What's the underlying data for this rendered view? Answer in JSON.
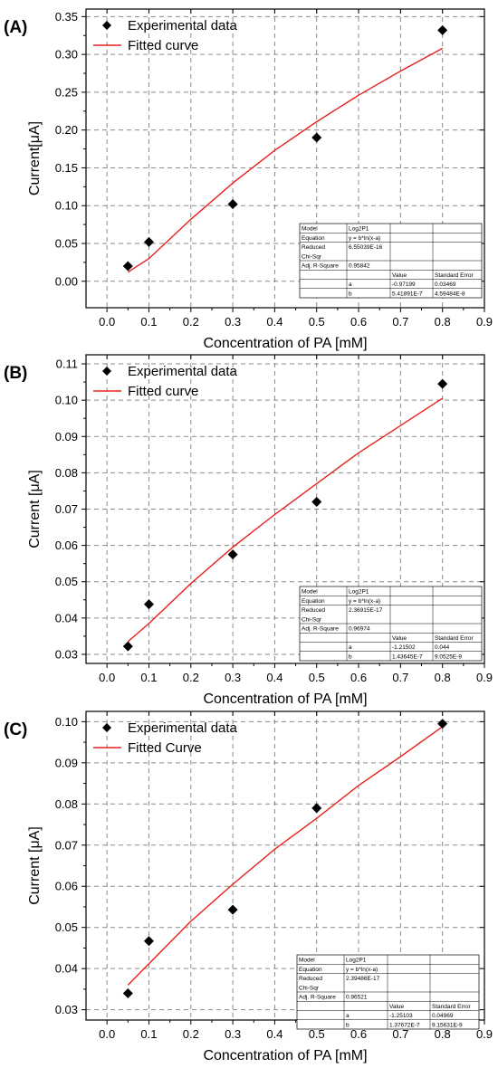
{
  "chart_data": [
    {
      "type": "scatter",
      "panel_label": "(A)",
      "xlabel": "Concentration of PA [mM]",
      "ylabel": "Current[μA]",
      "xlim": [
        -0.05,
        0.9
      ],
      "ylim": [
        -0.035,
        0.36
      ],
      "xticks": [
        0.0,
        0.1,
        0.2,
        0.3,
        0.4,
        0.5,
        0.6,
        0.7,
        0.8,
        0.9
      ],
      "xtick_labels": [
        "0.0",
        "0.1",
        "0.2",
        "0.3",
        "0.4",
        "0.5",
        "0.6",
        "0.7",
        "0.8",
        "0.9"
      ],
      "yticks": [
        0.0,
        0.05,
        0.1,
        0.15,
        0.2,
        0.25,
        0.3,
        0.35
      ],
      "ytick_labels": [
        "0.00",
        "0.05",
        "0.10",
        "0.15",
        "0.20",
        "0.25",
        "0.30",
        "0.35"
      ],
      "grid": true,
      "legend": [
        "Experimental data",
        "Fitted curve"
      ],
      "series": [
        {
          "name": "Experimental data",
          "x": [
            0.05,
            0.1,
            0.3,
            0.5,
            0.8
          ],
          "y": [
            0.02,
            0.052,
            0.102,
            0.19,
            0.332
          ]
        },
        {
          "name": "Fitted curve",
          "x": [
            0.05,
            0.1,
            0.2,
            0.3,
            0.4,
            0.5,
            0.6,
            0.7,
            0.8
          ],
          "y": [
            0.012,
            0.03,
            0.082,
            0.13,
            0.173,
            0.211,
            0.246,
            0.278,
            0.308
          ]
        }
      ],
      "stats_table": {
        "rows": [
          [
            "Model",
            "Log2P1",
            "",
            ""
          ],
          [
            "Equation",
            "y = b*ln(x-a)",
            "",
            ""
          ],
          [
            "Reduced",
            "6.55039E-16",
            "",
            ""
          ],
          [
            "Chi-Sqr",
            "",
            "",
            ""
          ],
          [
            "Adj. R-Square",
            "0.95842",
            "",
            ""
          ],
          [
            "",
            "",
            "Value",
            "Standard Error"
          ],
          [
            "",
            "a",
            "-0.97199",
            "0.03469"
          ],
          [
            "",
            "b",
            "5.41891E-7",
            "4.59484E-8"
          ]
        ]
      }
    },
    {
      "type": "scatter",
      "panel_label": "(B)",
      "xlabel": "Concentration of PA [mM]",
      "ylabel": "Current [μA]",
      "xlim": [
        -0.05,
        0.9
      ],
      "ylim": [
        0.0275,
        0.1125
      ],
      "xticks": [
        0.0,
        0.1,
        0.2,
        0.3,
        0.4,
        0.5,
        0.6,
        0.7,
        0.8,
        0.9
      ],
      "xtick_labels": [
        "0.0",
        "0.1",
        "0.2",
        "0.3",
        "0.4",
        "0.5",
        "0.6",
        "0.7",
        "0.8",
        "0.9"
      ],
      "yticks": [
        0.03,
        0.04,
        0.05,
        0.06,
        0.07,
        0.08,
        0.09,
        0.1,
        0.11
      ],
      "ytick_labels": [
        "0.03",
        "0.04",
        "0.05",
        "0.06",
        "0.07",
        "0.08",
        "0.09",
        "0.10",
        "0.11"
      ],
      "grid": true,
      "legend": [
        "Experimental data",
        "Fitted curve"
      ],
      "series": [
        {
          "name": "Experimental data",
          "x": [
            0.05,
            0.1,
            0.3,
            0.5,
            0.8
          ],
          "y": [
            0.0322,
            0.0438,
            0.0575,
            0.072,
            0.1045
          ]
        },
        {
          "name": "Fitted curve",
          "x": [
            0.05,
            0.1,
            0.2,
            0.3,
            0.4,
            0.5,
            0.6,
            0.7,
            0.8
          ],
          "y": [
            0.0335,
            0.0385,
            0.0495,
            0.0595,
            0.0685,
            0.077,
            0.0855,
            0.093,
            0.1005
          ]
        }
      ],
      "stats_table": {
        "rows": [
          [
            "Model",
            "Log2P1",
            "",
            ""
          ],
          [
            "Equation",
            "y = b*ln(x-a)",
            "",
            ""
          ],
          [
            "Reduced",
            "2.36915E-17",
            "",
            ""
          ],
          [
            "Chi-Sqr",
            "",
            "",
            ""
          ],
          [
            "Adj. R-Square",
            "0.96974",
            "",
            ""
          ],
          [
            "",
            "",
            "Value",
            "Standard Error"
          ],
          [
            "",
            "a",
            "-1.21502",
            "0.044"
          ],
          [
            "",
            "b",
            "1.43645E-7",
            "9.0525E-9"
          ]
        ]
      }
    },
    {
      "type": "scatter",
      "panel_label": "(C)",
      "xlabel": "Concentration of PA [mM]",
      "ylabel": "Current [μA]",
      "xlim": [
        -0.05,
        0.9
      ],
      "ylim": [
        0.0275,
        0.1025
      ],
      "xticks": [
        0.0,
        0.1,
        0.2,
        0.3,
        0.4,
        0.5,
        0.6,
        0.7,
        0.8,
        0.9
      ],
      "xtick_labels": [
        "0.0",
        "0.1",
        "0.2",
        "0.3",
        "0.4",
        "0.5",
        "0.6",
        "0.7",
        "0.8",
        "0.9"
      ],
      "yticks": [
        0.03,
        0.04,
        0.05,
        0.06,
        0.07,
        0.08,
        0.09,
        0.1
      ],
      "ytick_labels": [
        "0.03",
        "0.04",
        "0.05",
        "0.06",
        "0.07",
        "0.08",
        "0.09",
        "0.10"
      ],
      "grid": true,
      "legend": [
        "Experimental data",
        "Fitted Curve"
      ],
      "series": [
        {
          "name": "Experimental data",
          "x": [
            0.05,
            0.1,
            0.3,
            0.5,
            0.8
          ],
          "y": [
            0.034,
            0.0467,
            0.0543,
            0.079,
            0.0995
          ]
        },
        {
          "name": "Fitted Curve",
          "x": [
            0.05,
            0.1,
            0.2,
            0.3,
            0.4,
            0.5,
            0.6,
            0.7,
            0.8
          ],
          "y": [
            0.036,
            0.0412,
            0.0515,
            0.0605,
            0.069,
            0.0765,
            0.0845,
            0.0915,
            0.0988
          ]
        }
      ],
      "stats_table": {
        "rows": [
          [
            "Model",
            "Log2P1",
            "",
            ""
          ],
          [
            "Equation",
            "y = b*ln(x-a)",
            "",
            ""
          ],
          [
            "Reduced",
            "2.39486E-17",
            "",
            ""
          ],
          [
            "Chi-Sqr",
            "",
            "",
            ""
          ],
          [
            "Adj. R-Square",
            "0.96521",
            "",
            ""
          ],
          [
            "",
            "",
            "Value",
            "Standard Error"
          ],
          [
            "",
            "a",
            "-1.25103",
            "0.04969"
          ],
          [
            "",
            "b",
            "1.37672E-7",
            "9.15631E-9"
          ]
        ]
      }
    }
  ],
  "colors": {
    "marker": "#000000",
    "fit_line": "#e8201c",
    "grid": "#8a8a8a"
  }
}
